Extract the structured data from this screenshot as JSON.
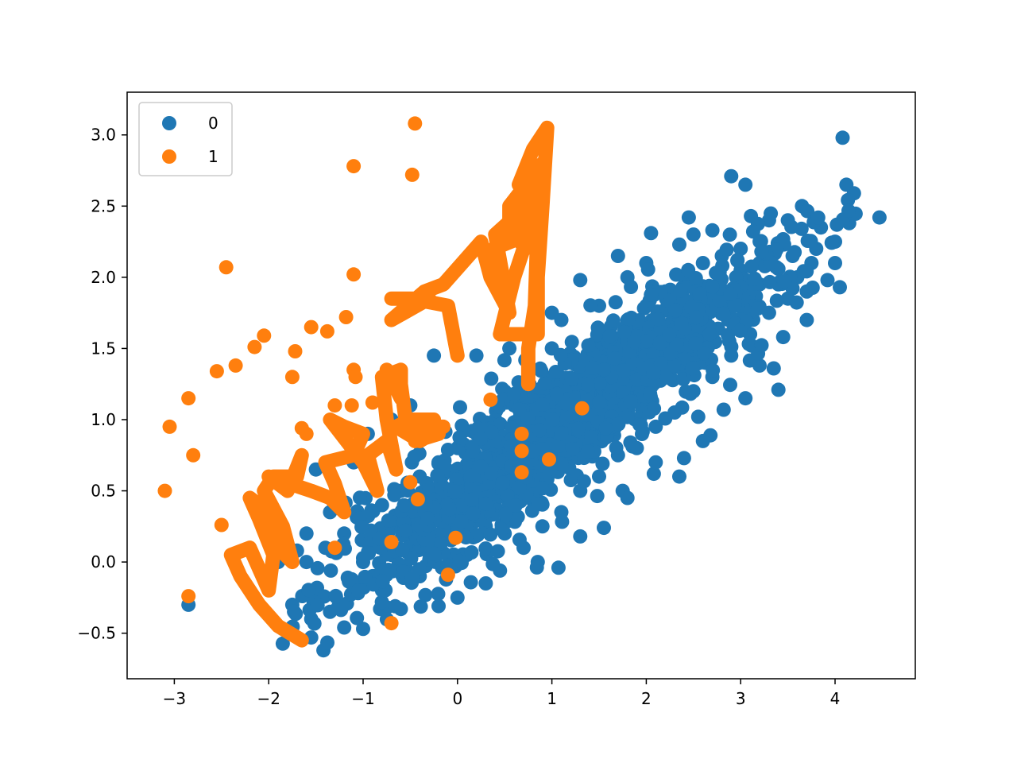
{
  "chart_data": {
    "type": "scatter",
    "title": "",
    "xlabel": "",
    "ylabel": "",
    "xlim": [
      -3.5,
      4.85
    ],
    "ylim": [
      -0.82,
      3.3
    ],
    "x_ticks": [
      -3,
      -2,
      -1,
      0,
      1,
      2,
      3,
      4
    ],
    "x_tick_labels": [
      "−3",
      "−2",
      "−1",
      "0",
      "1",
      "2",
      "3",
      "4"
    ],
    "y_ticks": [
      -0.5,
      0.0,
      0.5,
      1.0,
      1.5,
      2.0,
      2.5,
      3.0
    ],
    "y_tick_labels": [
      "−0.5",
      "0.0",
      "0.5",
      "1.0",
      "1.5",
      "2.0",
      "2.5",
      "3.0"
    ],
    "grid": false,
    "legend": {
      "placement": "upper-left"
    },
    "series": [
      {
        "name": "0",
        "color": "#1f77b4",
        "description_points": "dense elongated cloud along y ≈ 0.5x + 0.4",
        "points": [
          [
            -2.85,
            -0.3
          ],
          [
            -1.42,
            -0.62
          ],
          [
            -1.85,
            -0.47
          ],
          [
            -1.55,
            -0.53
          ],
          [
            -1.0,
            -0.47
          ],
          [
            -1.2,
            -0.46
          ],
          [
            -0.82,
            -0.33
          ],
          [
            -0.6,
            -0.33
          ],
          [
            -0.2,
            -0.31
          ],
          [
            0.0,
            -0.25
          ],
          [
            0.3,
            -0.15
          ],
          [
            0.45,
            -0.06
          ],
          [
            0.85,
            0.0
          ],
          [
            1.07,
            -0.04
          ],
          [
            1.3,
            0.18
          ],
          [
            1.55,
            0.24
          ],
          [
            1.75,
            0.5
          ],
          [
            2.08,
            0.62
          ],
          [
            2.35,
            0.6
          ],
          [
            2.4,
            0.73
          ],
          [
            2.55,
            1.02
          ],
          [
            2.68,
            0.89
          ],
          [
            2.82,
            1.07
          ],
          [
            3.05,
            1.15
          ],
          [
            3.2,
            1.38
          ],
          [
            3.35,
            1.36
          ],
          [
            3.45,
            1.58
          ],
          [
            3.4,
            1.21
          ],
          [
            3.7,
            1.7
          ],
          [
            3.6,
            2.0
          ],
          [
            3.65,
            2.5
          ],
          [
            3.5,
            2.4
          ],
          [
            3.85,
            2.35
          ],
          [
            4.08,
            2.98
          ],
          [
            4.12,
            2.65
          ],
          [
            4.2,
            2.59
          ],
          [
            4.15,
            2.38
          ],
          [
            4.47,
            2.42
          ],
          [
            4.0,
            2.25
          ],
          [
            4.05,
            1.93
          ],
          [
            4.0,
            2.1
          ],
          [
            3.92,
            1.98
          ],
          [
            3.05,
            2.65
          ],
          [
            2.9,
            2.71
          ],
          [
            2.45,
            2.42
          ],
          [
            2.05,
            2.31
          ],
          [
            2.7,
            2.33
          ],
          [
            2.35,
            2.23
          ],
          [
            1.7,
            2.15
          ],
          [
            1.8,
            2.0
          ],
          [
            1.3,
            1.98
          ],
          [
            1.1,
            1.7
          ],
          [
            1.0,
            1.75
          ],
          [
            0.55,
            1.5
          ],
          [
            0.2,
            1.45
          ],
          [
            -0.25,
            1.45
          ],
          [
            -0.5,
            1.1
          ],
          [
            -0.7,
            1.0
          ],
          [
            -0.95,
            0.9
          ],
          [
            -1.1,
            0.7
          ],
          [
            -1.5,
            0.65
          ],
          [
            -1.35,
            0.35
          ],
          [
            -1.6,
            0.2
          ],
          [
            -1.7,
            0.08
          ],
          [
            -1.9,
            0.0
          ],
          [
            -2.0,
            -0.1
          ],
          [
            -1.75,
            -0.3
          ],
          [
            -1.55,
            -0.4
          ],
          [
            -1.35,
            -0.35
          ],
          [
            -1.1,
            -0.2
          ],
          [
            -0.9,
            -0.1
          ],
          [
            -0.7,
            0.05
          ],
          [
            -0.5,
            0.15
          ],
          [
            -0.3,
            0.1
          ],
          [
            -0.1,
            0.2
          ],
          [
            0.1,
            0.05
          ],
          [
            0.3,
            0.25
          ],
          [
            0.5,
            0.2
          ],
          [
            0.7,
            0.1
          ],
          [
            0.9,
            0.25
          ],
          [
            1.1,
            0.35
          ],
          [
            1.3,
            0.5
          ],
          [
            1.5,
            0.6
          ],
          [
            1.7,
            0.75
          ],
          [
            1.9,
            0.8
          ],
          [
            2.1,
            0.95
          ],
          [
            2.3,
            1.05
          ],
          [
            2.5,
            1.2
          ],
          [
            2.7,
            1.3
          ],
          [
            2.9,
            1.45
          ],
          [
            3.1,
            1.6
          ],
          [
            3.3,
            1.75
          ],
          [
            3.5,
            1.85
          ],
          [
            3.2,
            1.95
          ],
          [
            3.0,
            2.05
          ],
          [
            2.8,
            2.15
          ],
          [
            2.6,
            2.1
          ],
          [
            2.4,
            2.0
          ],
          [
            2.2,
            1.9
          ],
          [
            2.0,
            1.8
          ],
          [
            1.8,
            1.7
          ],
          [
            1.6,
            1.6
          ],
          [
            1.4,
            1.5
          ],
          [
            1.2,
            1.4
          ],
          [
            1.0,
            1.3
          ],
          [
            0.8,
            1.2
          ],
          [
            0.6,
            1.1
          ],
          [
            0.4,
            1.0
          ],
          [
            0.2,
            0.9
          ],
          [
            0.0,
            0.8
          ],
          [
            -0.2,
            0.7
          ],
          [
            -0.4,
            0.6
          ],
          [
            -0.6,
            0.5
          ],
          [
            -0.8,
            0.4
          ],
          [
            -1.0,
            0.3
          ],
          [
            -1.2,
            0.2
          ],
          [
            -1.4,
            0.1
          ],
          [
            -1.6,
            0.0
          ],
          [
            -0.8,
            -0.2
          ],
          [
            -0.4,
            -0.1
          ],
          [
            0.2,
            0.4
          ],
          [
            0.6,
            0.5
          ],
          [
            1.0,
            0.7
          ],
          [
            1.4,
            0.9
          ],
          [
            1.8,
            1.1
          ],
          [
            2.2,
            1.3
          ],
          [
            2.6,
            1.5
          ],
          [
            3.0,
            1.7
          ],
          [
            3.4,
            1.95
          ],
          [
            0.0,
            0.3
          ],
          [
            0.4,
            0.6
          ],
          [
            0.8,
            0.8
          ],
          [
            1.2,
            1.0
          ],
          [
            1.6,
            1.2
          ],
          [
            2.0,
            1.4
          ],
          [
            2.4,
            1.6
          ],
          [
            2.8,
            1.8
          ],
          [
            3.2,
            2.1
          ],
          [
            1.0,
            1.0
          ],
          [
            1.5,
            1.3
          ],
          [
            2.0,
            1.6
          ],
          [
            2.5,
            1.8
          ],
          [
            3.0,
            2.2
          ],
          [
            0.5,
            0.8
          ],
          [
            1.5,
            1.8
          ],
          [
            2.0,
            2.1
          ],
          [
            2.5,
            2.3
          ],
          [
            1.0,
            1.5
          ],
          [
            0.5,
            1.2
          ],
          [
            -0.5,
            0.3
          ],
          [
            -1.0,
            0.0
          ],
          [
            -1.5,
            -0.2
          ],
          [
            1.8,
            0.45
          ],
          [
            2.1,
            0.7
          ],
          [
            2.6,
            0.85
          ],
          [
            3.7,
            1.9
          ],
          [
            3.8,
            2.2
          ],
          [
            3.55,
            2.15
          ],
          [
            3.3,
            2.4
          ],
          [
            3.75,
            2.1
          ]
        ]
      },
      {
        "name": "1",
        "color": "#ff7f0e",
        "description_points": "scattered points plus dense zig-zag chains",
        "points": [
          [
            -0.45,
            3.08
          ],
          [
            -1.1,
            2.78
          ],
          [
            -0.48,
            2.72
          ],
          [
            -2.45,
            2.07
          ],
          [
            -1.1,
            2.02
          ],
          [
            -1.55,
            1.65
          ],
          [
            -1.38,
            1.62
          ],
          [
            -1.18,
            1.72
          ],
          [
            -2.05,
            1.59
          ],
          [
            -2.15,
            1.51
          ],
          [
            -1.72,
            1.48
          ],
          [
            -2.35,
            1.38
          ],
          [
            -2.55,
            1.34
          ],
          [
            -1.1,
            1.35
          ],
          [
            -1.08,
            1.3
          ],
          [
            -1.75,
            1.3
          ],
          [
            -2.85,
            1.15
          ],
          [
            -1.3,
            1.1
          ],
          [
            -1.12,
            1.1
          ],
          [
            -0.9,
            1.12
          ],
          [
            -3.05,
            0.95
          ],
          [
            -1.65,
            0.94
          ],
          [
            -1.6,
            0.9
          ],
          [
            -2.8,
            0.75
          ],
          [
            -3.1,
            0.5
          ],
          [
            -0.5,
            0.56
          ],
          [
            -0.42,
            0.44
          ],
          [
            -2.5,
            0.26
          ],
          [
            -1.3,
            0.1
          ],
          [
            -0.7,
            0.14
          ],
          [
            -0.02,
            0.17
          ],
          [
            -2.85,
            -0.24
          ],
          [
            -0.7,
            -0.43
          ],
          [
            -0.1,
            -0.09
          ],
          [
            0.35,
            1.14
          ],
          [
            1.32,
            1.08
          ],
          [
            0.68,
            0.9
          ],
          [
            0.68,
            0.78
          ],
          [
            0.68,
            0.63
          ],
          [
            0.97,
            0.72
          ]
        ],
        "chains": [
          [
            [
              -1.65,
              -0.55
            ],
            [
              -1.9,
              -0.45
            ],
            [
              -2.1,
              -0.3
            ],
            [
              -2.3,
              -0.1
            ],
            [
              -2.4,
              0.05
            ],
            [
              -2.2,
              0.1
            ],
            [
              -2.0,
              -0.2
            ],
            [
              -1.95,
              0.05
            ],
            [
              -2.1,
              0.3
            ],
            [
              -2.2,
              0.45
            ],
            [
              -2.0,
              0.35
            ],
            [
              -1.9,
              0.1
            ],
            [
              -1.75,
              0.0
            ],
            [
              -1.85,
              0.25
            ],
            [
              -2.05,
              0.5
            ],
            [
              -1.95,
              0.6
            ],
            [
              -1.7,
              0.6
            ],
            [
              -1.65,
              0.75
            ],
            [
              -1.8,
              0.5
            ],
            [
              -2.0,
              0.6
            ],
            [
              -1.55,
              0.5
            ],
            [
              -1.35,
              0.45
            ],
            [
              -1.2,
              0.35
            ],
            [
              -1.3,
              0.55
            ],
            [
              -1.4,
              0.7
            ],
            [
              -1.1,
              0.75
            ],
            [
              -1.0,
              0.9
            ],
            [
              -1.2,
              0.95
            ],
            [
              -1.35,
              1.0
            ],
            [
              -1.0,
              0.7
            ],
            [
              -0.85,
              0.5
            ],
            [
              -0.95,
              0.75
            ],
            [
              -0.75,
              0.85
            ],
            [
              -0.65,
              0.65
            ],
            [
              -0.75,
              1.0
            ],
            [
              -0.8,
              1.3
            ],
            [
              -0.6,
              1.35
            ],
            [
              -0.6,
              1.15
            ],
            [
              -0.75,
              1.35
            ],
            [
              -0.6,
              1.25
            ],
            [
              -0.55,
              1.0
            ],
            [
              -0.35,
              0.95
            ],
            [
              -0.15,
              0.95
            ],
            [
              -0.4,
              0.85
            ],
            [
              -0.65,
              0.95
            ],
            [
              -0.5,
              1.0
            ],
            [
              -0.25,
              1.0
            ],
            [
              -0.45,
              0.85
            ],
            [
              -0.2,
              0.9
            ]
          ],
          [
            [
              0.0,
              1.45
            ],
            [
              -0.1,
              1.8
            ],
            [
              -0.5,
              1.85
            ],
            [
              -0.7,
              1.85
            ],
            [
              -0.3,
              1.85
            ],
            [
              -0.7,
              1.7
            ],
            [
              -0.35,
              1.9
            ],
            [
              -0.15,
              1.95
            ],
            [
              0.25,
              2.25
            ],
            [
              0.35,
              2.0
            ],
            [
              0.55,
              1.75
            ],
            [
              0.4,
              2.3
            ],
            [
              0.65,
              2.45
            ],
            [
              0.8,
              2.65
            ],
            [
              0.75,
              2.4
            ],
            [
              0.38,
              2.2
            ],
            [
              0.75,
              2.3
            ],
            [
              0.6,
              2.0
            ],
            [
              0.45,
              1.6
            ],
            [
              0.7,
              1.6
            ],
            [
              0.85,
              1.6
            ],
            [
              0.85,
              2.0
            ],
            [
              0.9,
              2.5
            ],
            [
              0.95,
              3.05
            ],
            [
              0.8,
              2.9
            ],
            [
              0.65,
              2.65
            ],
            [
              0.8,
              2.6
            ],
            [
              0.9,
              2.8
            ],
            [
              0.55,
              2.5
            ],
            [
              0.55,
              2.35
            ],
            [
              0.72,
              2.2
            ],
            [
              0.85,
              2.4
            ],
            [
              0.82,
              1.8
            ],
            [
              0.75,
              1.5
            ],
            [
              0.75,
              1.25
            ]
          ]
        ]
      }
    ]
  }
}
